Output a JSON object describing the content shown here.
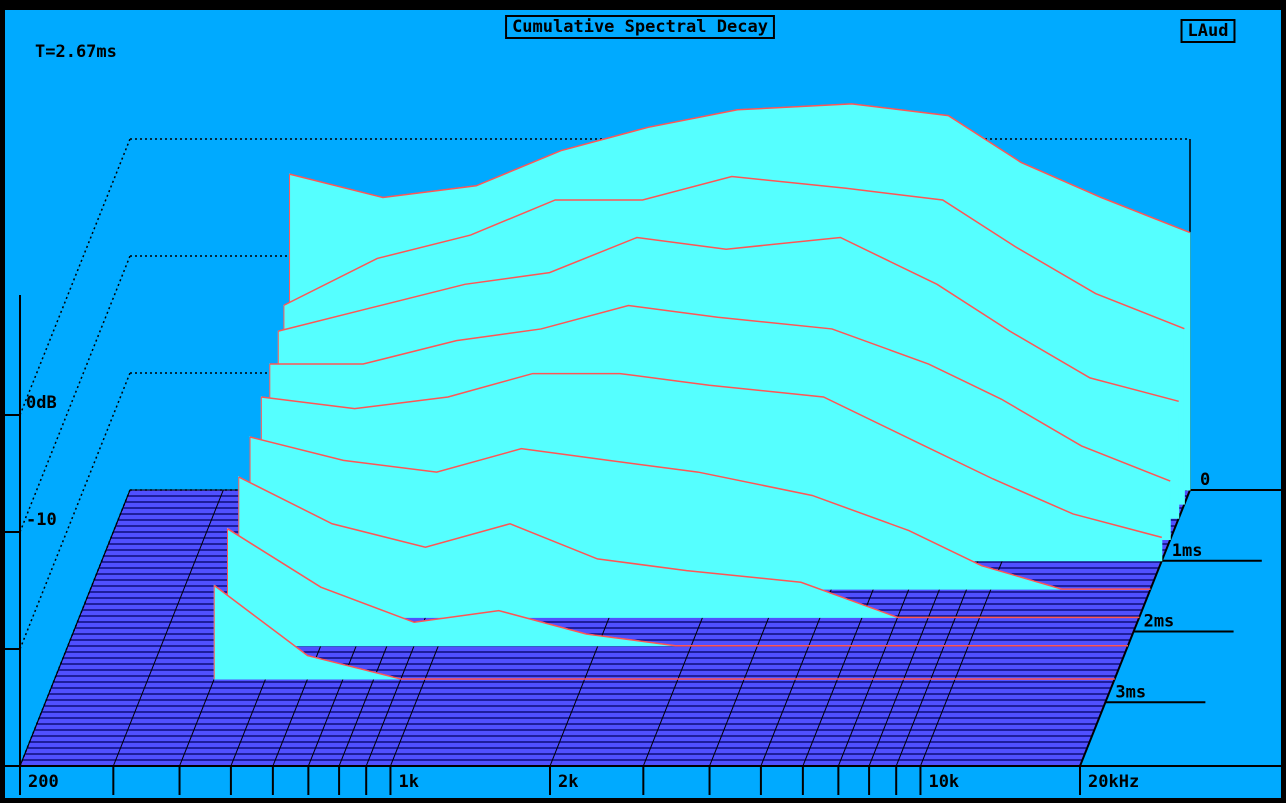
{
  "chart_data": {
    "type": "waterfall",
    "title": "Cumulative Spectral Decay",
    "annotation": "T=2.67ms",
    "badge": "LAud",
    "xscale": "log",
    "xlim": [
      200,
      20000
    ],
    "xticks": [
      200,
      {
        "value": 1000,
        "label": "1k"
      },
      {
        "value": 2000,
        "label": "2k"
      },
      {
        "value": 10000,
        "label": "10k"
      },
      {
        "value": 20000,
        "label": "20kHz"
      }
    ],
    "x_minor_ticks": [
      300,
      400,
      500,
      600,
      700,
      800,
      900,
      3000,
      4000,
      5000,
      6000,
      7000,
      8000,
      9000
    ],
    "ylim": [
      -30,
      0
    ],
    "yticks": [
      {
        "value": 0,
        "label": "0dB"
      },
      -10,
      {
        "value": -20,
        "label": ""
      },
      {
        "value": -30,
        "label": ""
      }
    ],
    "zlim": [
      0,
      3.9
    ],
    "zticks": [
      0,
      {
        "value": 1,
        "label": "1ms"
      },
      {
        "value": 2,
        "label": "2ms"
      },
      {
        "value": 3,
        "label": "3ms"
      }
    ],
    "fill_color": "#55ffff",
    "line_color": "#ff5555",
    "floor_color": "#5050ff",
    "x": [
      400,
      600,
      900,
      1300,
      1900,
      2800,
      4600,
      7000,
      9600,
      13600,
      20000
    ],
    "series": [
      {
        "z": 0,
        "values": [
          -3,
          -5,
          -4,
          -1,
          1,
          2.5,
          3,
          2,
          -2,
          -5,
          -8
        ]
      },
      {
        "z": 0.2,
        "values": [
          -13,
          -9,
          -7,
          -4,
          -4,
          -2,
          -3,
          -4,
          -8,
          -12,
          -15
        ]
      },
      {
        "z": 0.4,
        "values": [
          -14,
          -12,
          -10,
          -9,
          -6,
          -7,
          -6,
          -10,
          -14,
          -18,
          -20
        ]
      },
      {
        "z": 0.7,
        "values": [
          -15,
          -15,
          -13,
          -12,
          -10,
          -11,
          -12,
          -15,
          -18,
          -22,
          -25
        ]
      },
      {
        "z": 1.0,
        "values": [
          -16,
          -17,
          -16,
          -14,
          -14,
          -15,
          -16,
          -20,
          -23,
          -26,
          -28
        ]
      },
      {
        "z": 1.4,
        "values": [
          -17,
          -19,
          -20,
          -18,
          -19,
          -20,
          -22,
          -25,
          -28,
          -30,
          -30
        ]
      },
      {
        "z": 1.8,
        "values": [
          -18,
          -22,
          -24,
          -22,
          -25,
          -26,
          -27,
          -30,
          -30,
          -30,
          -30
        ]
      },
      {
        "z": 2.2,
        "values": [
          -20,
          -25,
          -28,
          -27,
          -29,
          -30,
          -30,
          -30,
          -30,
          -30,
          -30
        ]
      },
      {
        "z": 2.67,
        "values": [
          -22,
          -28,
          -30,
          -30,
          -30,
          -30,
          -30,
          -30,
          -30,
          -30,
          -30
        ]
      }
    ]
  }
}
